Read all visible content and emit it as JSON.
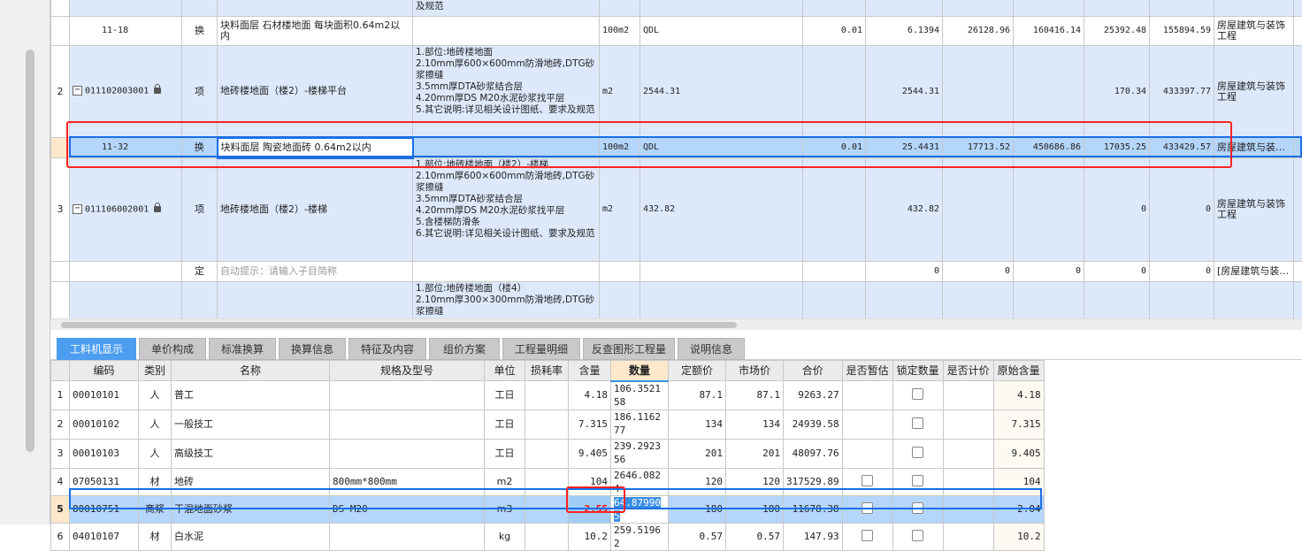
{
  "top_grid": {
    "rows": [
      {
        "no": "",
        "code": "",
        "type": "",
        "name": "",
        "features": "及规范",
        "unit": "",
        "expr": "",
        "content": "",
        "qty": "",
        "unit_price": "",
        "total": "",
        "c1": "",
        "c2": "",
        "major": ""
      },
      {
        "no": "",
        "code": "11-18",
        "type": "换",
        "name": "块料面层 石材楼地面 每块面积0.64m2以内",
        "features": "",
        "unit": "100m2",
        "expr": "QDL",
        "content": "0.01",
        "qty": "6.1394",
        "unit_price": "26128.96",
        "total": "160416.14",
        "c1": "25392.48",
        "c2": "155894.59",
        "major": "房屋建筑与装饰工程"
      },
      {
        "no": "2",
        "code": "011102003001",
        "type": "项",
        "name": "地砖楼地面（楼2）-楼梯平台",
        "features": "1.部位:地砖楼地面\n2.10mm厚600×600mm防滑地砖,DTG砂浆擦缝\n3.5mm厚DTA砂浆结合层\n4.20mm厚DS M20水泥砂浆找平层\n5.其它说明:详见相关设计图纸、要求及规范",
        "unit": "m2",
        "expr": "2544.31",
        "content": "",
        "qty": "2544.31",
        "unit_price": "",
        "total": "",
        "c1": "170.34",
        "c2": "433397.77",
        "major": "房屋建筑与装饰工程"
      },
      {
        "no": "",
        "code": "11-32",
        "type": "换",
        "name": "块料面层 陶瓷地面砖 0.64m2以内",
        "features": "",
        "unit": "100m2",
        "expr": "QDL",
        "content": "0.01",
        "qty": "25.4431",
        "unit_price": "17713.52",
        "total": "450686.86",
        "c1": "17035.25",
        "c2": "433429.57",
        "major": "房屋建筑与装…"
      },
      {
        "no": "3",
        "code": "011106002001",
        "type": "项",
        "name": "地砖楼地面（楼2）-楼梯",
        "features": "1.部位:地砖楼地面（楼2）-楼梯\n2.10mm厚600×600mm防滑地砖,DTG砂浆擦缝\n3.5mm厚DTA砂浆结合层\n4.20mm厚DS M20水泥砂浆找平层\n5.含楼梯防滑条\n6.其它说明:详见相关设计图纸、要求及规范",
        "unit": "m2",
        "expr": "432.82",
        "content": "",
        "qty": "432.82",
        "unit_price": "",
        "total": "",
        "c1": "0",
        "c2": "0",
        "major": "房屋建筑与装饰工程"
      },
      {
        "no": "",
        "code": "",
        "type": "定",
        "name": "自动提示：请输入子目简称",
        "features": "",
        "unit": "",
        "expr": "",
        "content": "",
        "qty": "0",
        "unit_price": "0",
        "total": "0",
        "c1": "0",
        "c2": "0",
        "major": "[房屋建筑与装…"
      },
      {
        "no": "",
        "code": "",
        "type": "",
        "name": "",
        "features": "1.部位:地砖楼地面（楼4）\n2.10mm厚300×300mm防滑地砖,DTG砂浆擦缝",
        "unit": "",
        "expr": "",
        "content": "",
        "qty": "",
        "unit_price": "",
        "total": "",
        "c1": "",
        "c2": "",
        "major": ""
      }
    ]
  },
  "tabs": [
    "工料机显示",
    "单价构成",
    "标准换算",
    "换算信息",
    "特征及内容",
    "组价方案",
    "工程量明细",
    "反查图形工程量",
    "说明信息"
  ],
  "active_tab": "工料机显示",
  "bottom_grid": {
    "headers": [
      "编码",
      "类别",
      "名称",
      "规格及型号",
      "单位",
      "损耗率",
      "含量",
      "数量",
      "定额价",
      "市场价",
      "合价",
      "是否暂估",
      "锁定数量",
      "是否计价",
      "原始含量"
    ],
    "rows": [
      {
        "no": "1",
        "code": "00010101",
        "cat": "人",
        "name": "普工",
        "spec": "",
        "unit": "工日",
        "loss": "",
        "content": "4.18",
        "qty": "106.352158",
        "quota": "87.1",
        "market": "87.1",
        "total": "9263.27",
        "est": null,
        "lock": false,
        "priced": null,
        "orig": "4.18"
      },
      {
        "no": "2",
        "code": "00010102",
        "cat": "人",
        "name": "一般技工",
        "spec": "",
        "unit": "工日",
        "loss": "",
        "content": "7.315",
        "qty": "186.116277",
        "quota": "134",
        "market": "134",
        "total": "24939.58",
        "est": null,
        "lock": false,
        "priced": null,
        "orig": "7.315"
      },
      {
        "no": "3",
        "code": "00010103",
        "cat": "人",
        "name": "高级技工",
        "spec": "",
        "unit": "工日",
        "loss": "",
        "content": "9.405",
        "qty": "239.292356",
        "quota": "201",
        "market": "201",
        "total": "48097.76",
        "est": null,
        "lock": false,
        "priced": null,
        "orig": "9.405"
      },
      {
        "no": "4",
        "code": "07050131",
        "cat": "材",
        "name": "地砖",
        "spec": "800mm*800mm",
        "unit": "m2",
        "loss": "",
        "content": "104",
        "qty": "2646.0824",
        "quota": "120",
        "market": "120",
        "total": "317529.89",
        "est": false,
        "lock": false,
        "priced": null,
        "orig": "104"
      },
      {
        "no": "5",
        "code": "80010751",
        "cat": "商浆",
        "name": "干混地面砂浆",
        "spec": "DS M20",
        "unit": "m3",
        "loss": "",
        "content": "2.55",
        "qty": "64.879905",
        "quota": "180",
        "market": "180",
        "total": "11678.38",
        "est": false,
        "lock": false,
        "priced": null,
        "orig": "2.04"
      },
      {
        "no": "6",
        "code": "04010107",
        "cat": "材",
        "name": "白水泥",
        "spec": "",
        "unit": "kg",
        "loss": "",
        "content": "10.2",
        "qty": "259.51962",
        "quota": "0.57",
        "market": "0.57",
        "total": "147.93",
        "est": false,
        "lock": false,
        "priced": null,
        "orig": "10.2"
      }
    ]
  },
  "colors": {
    "accent": "#4d9df0",
    "selection": "#b5d6fb",
    "highlight_red": "#ff2222",
    "row_blue": "#dde9fb"
  }
}
